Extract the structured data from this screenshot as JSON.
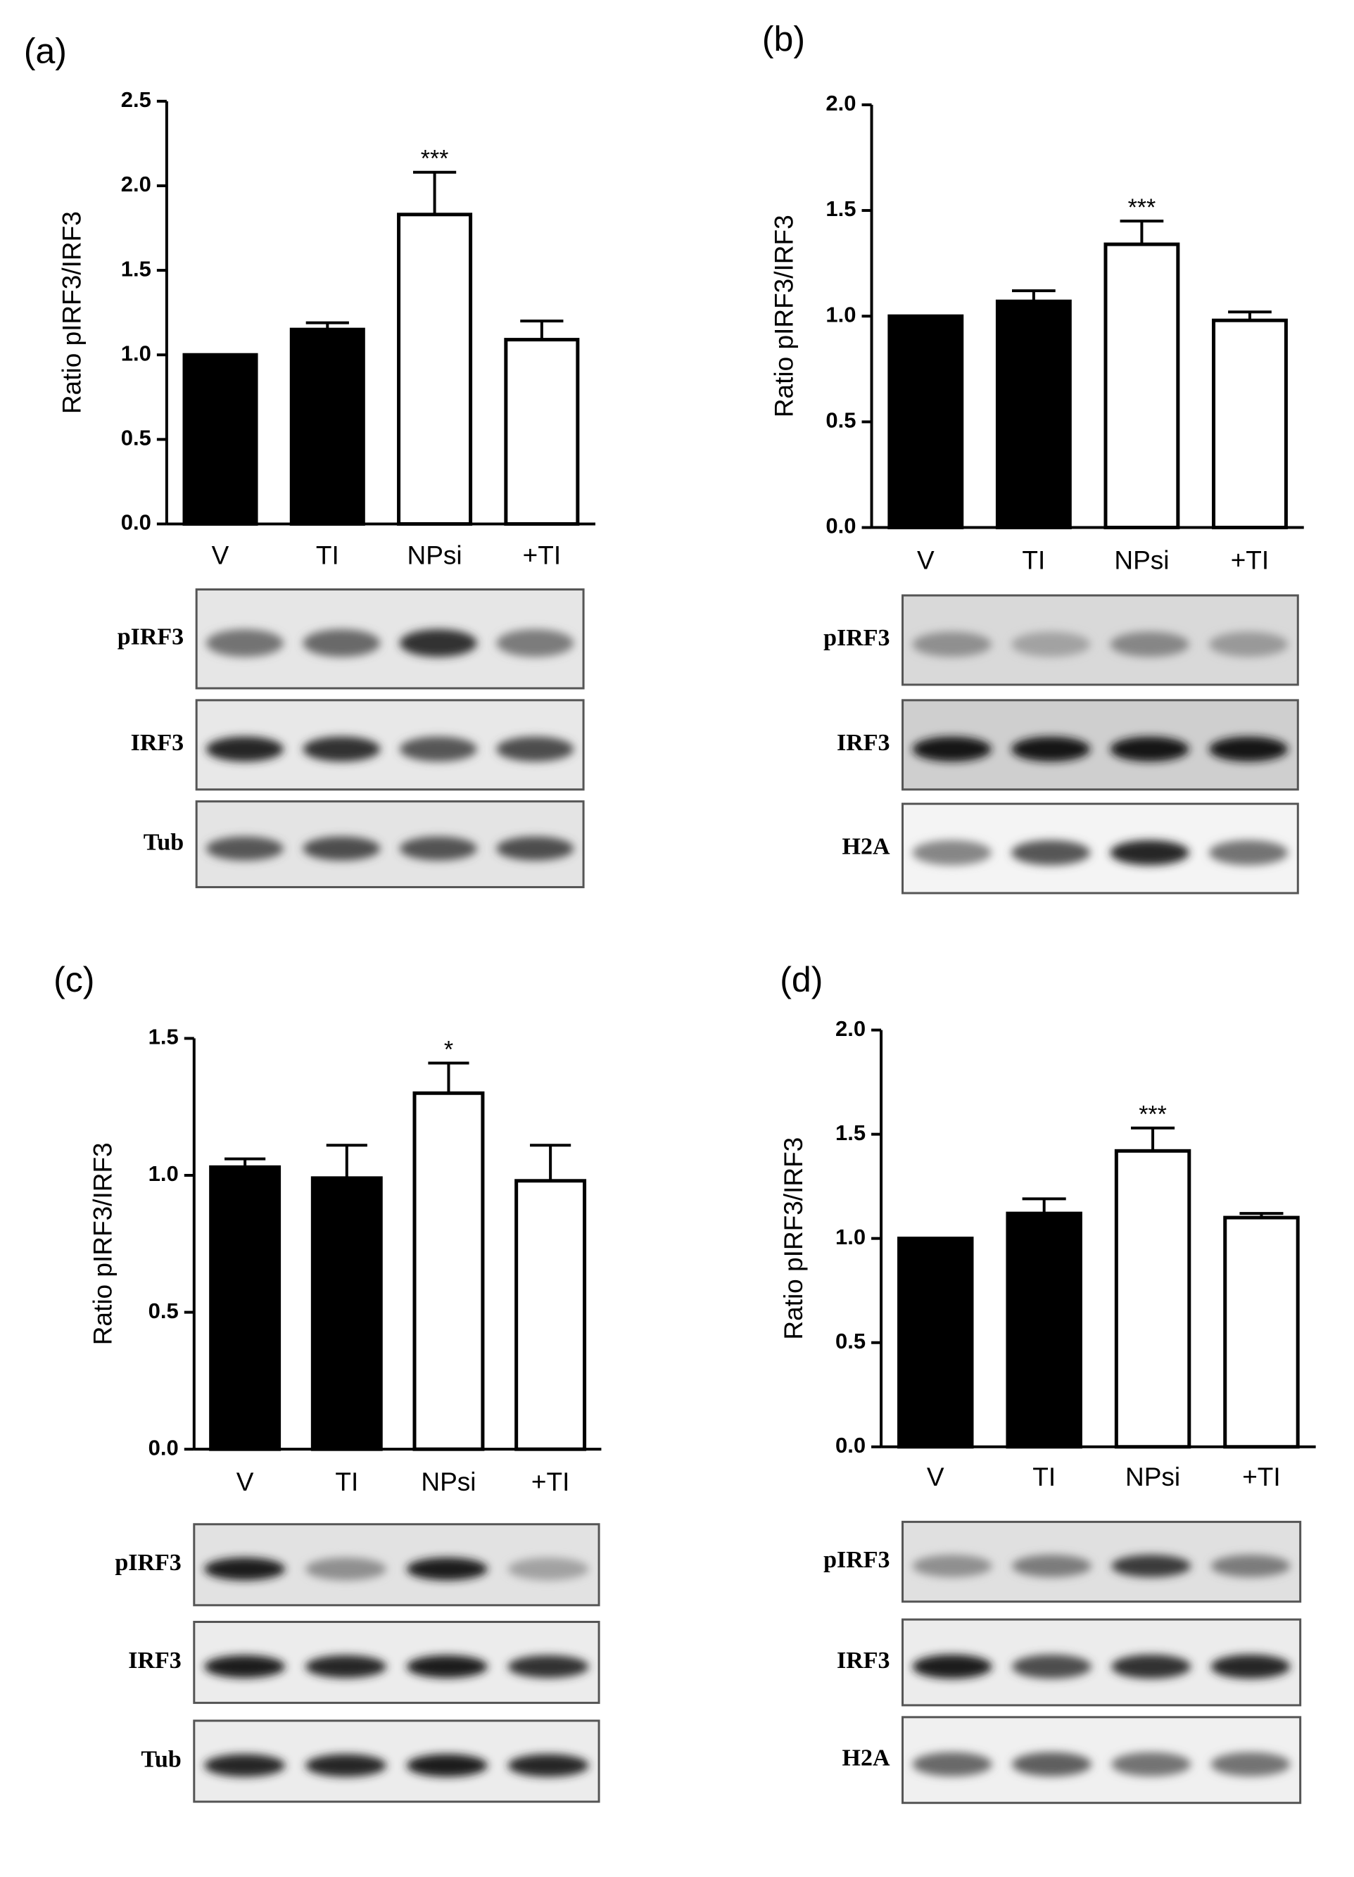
{
  "chart_data": [
    {
      "type": "bar",
      "panel_label": "(a)",
      "ylabel": "Ratio pIRF3/IRF3",
      "categories": [
        "V",
        "TI",
        "NPsi",
        "+TI"
      ],
      "values": [
        1.0,
        1.15,
        1.83,
        1.09
      ],
      "errors": [
        0,
        0.04,
        0.25,
        0.11
      ],
      "colors": [
        "#000000",
        "#000000",
        "#ffffff",
        "#ffffff"
      ],
      "value_annotations": [
        null,
        null,
        "***",
        null
      ],
      "ylim": [
        0,
        2.5
      ],
      "yticks": [
        {
          "value": 0,
          "label": "0.0"
        },
        0.5,
        {
          "value": 1,
          "label": "1.0"
        },
        1.5,
        {
          "value": 2,
          "label": "2.0"
        },
        2.5
      ],
      "blots": [
        "pIRF3",
        "IRF3",
        "Tub"
      ]
    },
    {
      "type": "bar",
      "panel_label": "(b)",
      "ylabel": "Ratio pIRF3/IRF3",
      "categories": [
        "V",
        "TI",
        "NPsi",
        "+TI"
      ],
      "values": [
        1.0,
        1.07,
        1.34,
        0.98
      ],
      "errors": [
        0,
        0.05,
        0.11,
        0.04
      ],
      "colors": [
        "#000000",
        "#000000",
        "#ffffff",
        "#ffffff"
      ],
      "value_annotations": [
        null,
        null,
        "***",
        null
      ],
      "ylim": [
        0,
        2
      ],
      "yticks": [
        {
          "value": 0,
          "label": "0.0"
        },
        0.5,
        {
          "value": 1,
          "label": "1.0"
        },
        1.5,
        {
          "value": 2,
          "label": "2.0"
        }
      ],
      "blots": [
        "pIRF3",
        "IRF3",
        "H2A"
      ]
    },
    {
      "type": "bar",
      "panel_label": "(c)",
      "ylabel": "Ratio pIRF3/IRF3",
      "categories": [
        "V",
        "TI",
        "NPsi",
        "+TI"
      ],
      "values": [
        1.03,
        0.99,
        1.3,
        0.98
      ],
      "errors": [
        0.03,
        0.12,
        0.11,
        0.13
      ],
      "colors": [
        "#000000",
        "#000000",
        "#ffffff",
        "#ffffff"
      ],
      "value_annotations": [
        null,
        null,
        "*",
        null
      ],
      "ylim": [
        0,
        1.5
      ],
      "yticks": [
        {
          "value": 0,
          "label": "0.0"
        },
        0.5,
        {
          "value": 1,
          "label": "1.0"
        },
        1.5
      ],
      "blots": [
        "pIRF3",
        "IRF3",
        "Tub"
      ]
    },
    {
      "type": "bar",
      "panel_label": "(d)",
      "ylabel": "Ratio pIRF3/IRF3",
      "categories": [
        "V",
        "TI",
        "NPsi",
        "+TI"
      ],
      "values": [
        1.0,
        1.12,
        1.42,
        1.1
      ],
      "errors": [
        0,
        0.07,
        0.11,
        0.02
      ],
      "colors": [
        "#000000",
        "#000000",
        "#ffffff",
        "#ffffff"
      ],
      "value_annotations": [
        null,
        null,
        "***",
        null
      ],
      "ylim": [
        0,
        2
      ],
      "yticks": [
        {
          "value": 0,
          "label": "0.0"
        },
        0.5,
        {
          "value": 1,
          "label": "1.0"
        },
        1.5,
        {
          "value": 2,
          "label": "2.0"
        }
      ],
      "blots": [
        "pIRF3",
        "IRF3",
        "H2A"
      ]
    }
  ]
}
